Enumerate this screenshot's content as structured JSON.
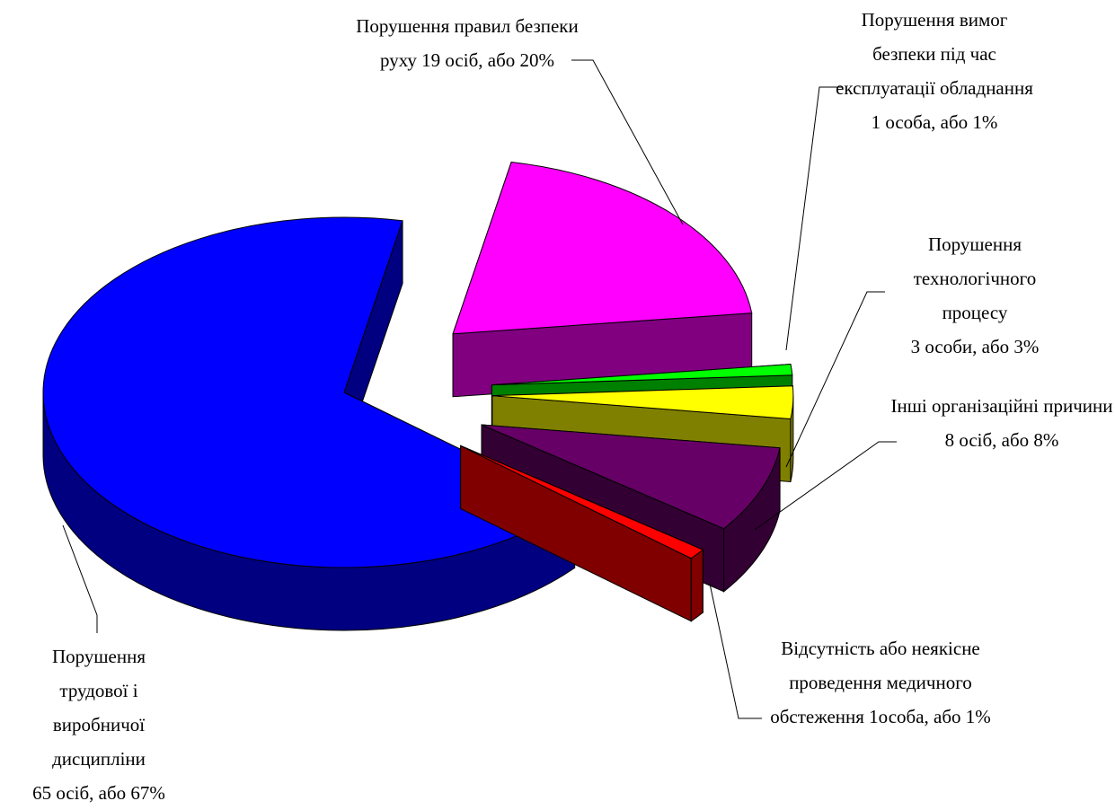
{
  "chart_data": {
    "type": "pie3d",
    "categories": [
      "Порушення трудової і виробничої дисципліни",
      "Порушення правил безпеки руху",
      "Порушення вимог безпеки під час експлуатації обладнання",
      "Порушення технологічного процесу",
      "Інші організаційні причини",
      "Відсутність або неякісне проведення медичного обстеження"
    ],
    "values": [
      67,
      20,
      1,
      3,
      8,
      1
    ],
    "value_labels": [
      "65 осіб, або 67%",
      "19 осіб, або 20%",
      "1 особа, або 1%",
      "3 особи, або 3%",
      "8 осіб, або 8%",
      "1особа, або 1%"
    ],
    "colors": [
      "#0000ff",
      "#ff00ff",
      "#00ff00",
      "#ffff00",
      "#660066",
      "#ff0000"
    ]
  }
}
